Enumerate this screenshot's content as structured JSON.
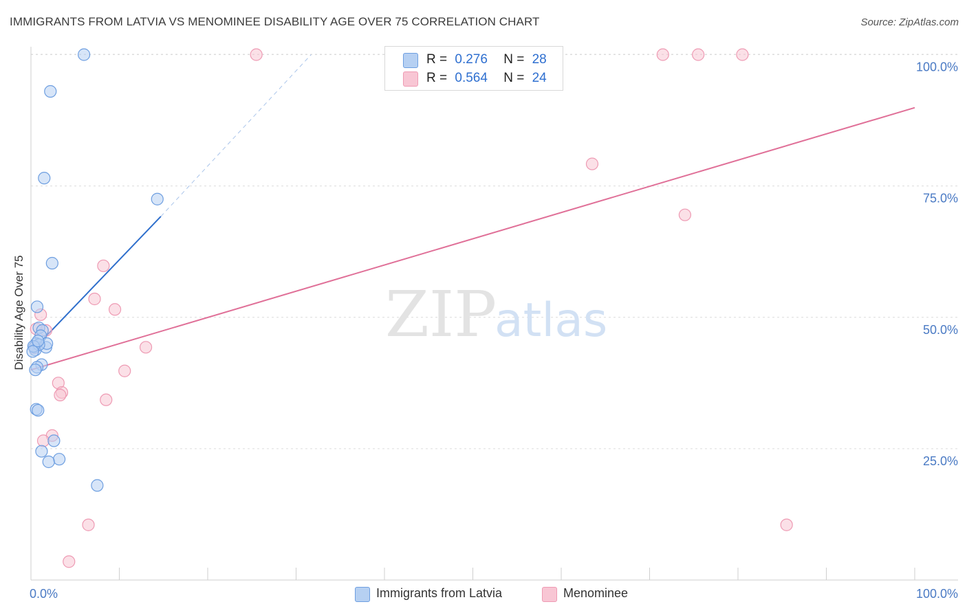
{
  "title": "IMMIGRANTS FROM LATVIA VS MENOMINEE DISABILITY AGE OVER 75 CORRELATION CHART",
  "source": "Source: ZipAtlas.com",
  "watermark": {
    "zip": "ZIP",
    "atlas": "atlas"
  },
  "colors": {
    "blue_fill": "#b6d0f2",
    "blue_stroke": "#6d9ee0",
    "blue_line": "#2f6fcc",
    "pink_fill": "#f8c6d4",
    "pink_stroke": "#ee9ab3",
    "pink_line": "#e07098"
  },
  "legend_top": [
    {
      "r_label": "R =",
      "r_value": "0.276",
      "n_label": "N =",
      "n_value": "28"
    },
    {
      "r_label": "R =",
      "r_value": "0.564",
      "n_label": "N =",
      "n_value": "24"
    }
  ],
  "legend_bottom": [
    "Immigrants from Latvia",
    "Menominee"
  ],
  "chart_data": {
    "type": "scatter",
    "title": "IMMIGRANTS FROM LATVIA VS MENOMINEE DISABILITY AGE OVER 75 CORRELATION CHART",
    "xlabel": "",
    "ylabel": "Disability Age Over 75",
    "xlim": [
      0,
      100
    ],
    "ylim": [
      0,
      100
    ],
    "x_tick_labels": [
      "0.0%",
      "100.0%"
    ],
    "y_tick_labels": [
      "25.0%",
      "50.0%",
      "75.0%",
      "100.0%"
    ],
    "y_ticks": [
      25,
      50,
      75,
      100
    ],
    "grid": true,
    "legend_position": "top-center",
    "series": [
      {
        "name": "Immigrants from Latvia",
        "color": "#6d9ee0",
        "points": [
          [
            6.0,
            100.0
          ],
          [
            2.2,
            93.0
          ],
          [
            1.5,
            76.5
          ],
          [
            14.3,
            72.5
          ],
          [
            2.4,
            60.3
          ],
          [
            0.7,
            52.0
          ],
          [
            0.9,
            48.0
          ],
          [
            1.3,
            47.5
          ],
          [
            1.1,
            46.5
          ],
          [
            0.6,
            45.0
          ],
          [
            0.4,
            44.3
          ],
          [
            0.5,
            43.8
          ],
          [
            1.7,
            44.3
          ],
          [
            1.8,
            45.0
          ],
          [
            0.9,
            44.8
          ],
          [
            0.3,
            44.5
          ],
          [
            0.2,
            43.5
          ],
          [
            1.2,
            41.0
          ],
          [
            0.7,
            40.5
          ],
          [
            0.5,
            40.0
          ],
          [
            0.6,
            32.5
          ],
          [
            0.8,
            32.3
          ],
          [
            2.6,
            26.5
          ],
          [
            1.2,
            24.5
          ],
          [
            3.2,
            23.0
          ],
          [
            2.0,
            22.5
          ],
          [
            7.5,
            18.0
          ],
          [
            0.8,
            45.5
          ]
        ],
        "trend": {
          "x": [
            0,
            14.7
          ],
          "y": [
            43.4,
            69.2
          ]
        },
        "trend_extension": {
          "x": [
            14.7,
            31.7
          ],
          "y": [
            69.2,
            100.0
          ]
        }
      },
      {
        "name": "Menominee",
        "color": "#ee9ab3",
        "points": [
          [
            25.5,
            100.0
          ],
          [
            71.5,
            100.0
          ],
          [
            75.5,
            100.0
          ],
          [
            80.5,
            100.0
          ],
          [
            63.5,
            79.2
          ],
          [
            74.0,
            69.5
          ],
          [
            8.2,
            59.8
          ],
          [
            7.2,
            53.5
          ],
          [
            9.5,
            51.5
          ],
          [
            1.1,
            50.5
          ],
          [
            1.7,
            47.5
          ],
          [
            0.6,
            47.8
          ],
          [
            13.0,
            44.3
          ],
          [
            0.4,
            44.2
          ],
          [
            10.6,
            39.8
          ],
          [
            3.1,
            37.5
          ],
          [
            3.5,
            35.7
          ],
          [
            3.3,
            35.2
          ],
          [
            8.5,
            34.3
          ],
          [
            2.4,
            27.5
          ],
          [
            1.4,
            26.5
          ],
          [
            6.5,
            10.5
          ],
          [
            85.5,
            10.5
          ],
          [
            4.3,
            3.5
          ]
        ],
        "trend": {
          "x": [
            0,
            100
          ],
          "y": [
            40.0,
            89.9
          ]
        }
      }
    ]
  }
}
